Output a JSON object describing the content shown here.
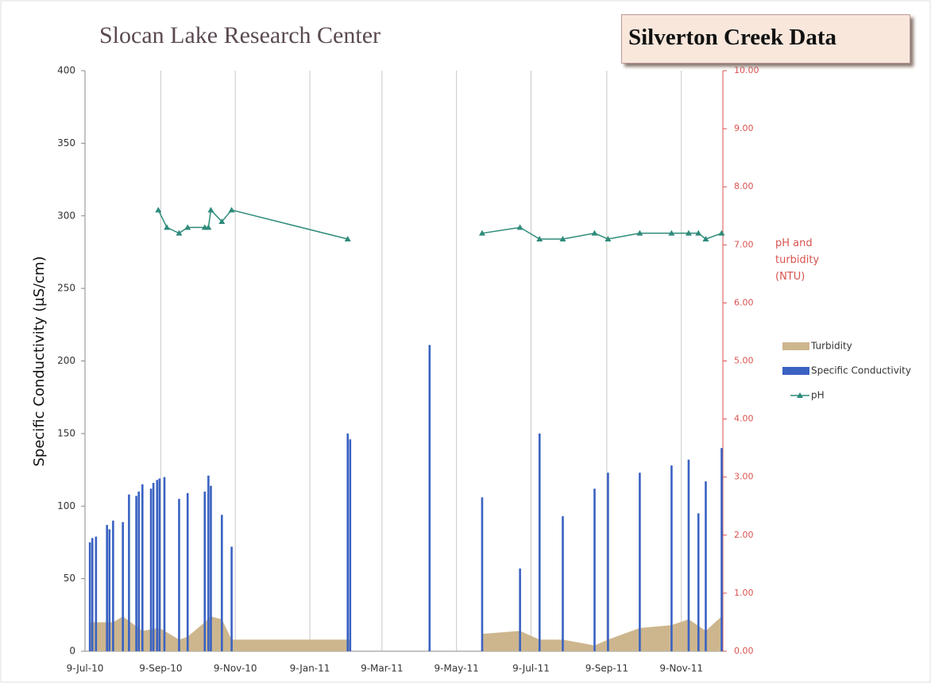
{
  "chart_data": {
    "type": "combo",
    "title": "Slocan Lake Research Center",
    "subtitle": "Silverton Creek Data",
    "y_label": "Specific Conductivity (µS/cm)",
    "y2_label": "pH and turbidity (NTU)",
    "xlim": [
      "2010-07-09",
      "2011-12-13"
    ],
    "xticks": [
      {
        "value": "2010-07-09",
        "label": "9-Jul-10"
      },
      {
        "value": "2010-09-09",
        "label": "9-Sep-10"
      },
      {
        "value": "2010-11-09",
        "label": "9-Nov-10"
      },
      {
        "value": "2011-01-09",
        "label": "9-Jan-11"
      },
      {
        "value": "2011-03-09",
        "label": "9-Mar-11"
      },
      {
        "value": "2011-05-09",
        "label": "9-May-11"
      },
      {
        "value": "2011-07-09",
        "label": "9-Jul-11"
      },
      {
        "value": "2011-09-09",
        "label": "9-Sep-11"
      },
      {
        "value": "2011-11-09",
        "label": "9-Nov-11"
      }
    ],
    "ylim": [
      0,
      400
    ],
    "yticks": [
      0,
      50,
      100,
      150,
      200,
      250,
      300,
      350,
      400
    ],
    "y2lim": [
      0,
      10
    ],
    "y2ticks": [
      {
        "value": 0,
        "label": "0.00"
      },
      {
        "value": 1,
        "label": "1.00"
      },
      {
        "value": 2,
        "label": "2.00"
      },
      {
        "value": 3,
        "label": "3.00"
      },
      {
        "value": 4,
        "label": "4.00"
      },
      {
        "value": 5,
        "label": "5.00"
      },
      {
        "value": 6,
        "label": "6.00"
      },
      {
        "value": 7,
        "label": "7.00"
      },
      {
        "value": 8,
        "label": "8.00"
      },
      {
        "value": 9,
        "label": "9.00"
      },
      {
        "value": 10,
        "label": "10.00"
      }
    ],
    "grid": "x",
    "legend": "right",
    "series": [
      {
        "name": "Turbidity",
        "type": "area",
        "axis": "y2",
        "color": "#cdb68e",
        "x": [
          "2010-07-13",
          "2010-08-01",
          "2010-08-09",
          "2010-08-25",
          "2010-09-08",
          "2010-09-12",
          "2010-09-24",
          "2010-10-01",
          "2010-10-15",
          "2010-10-20",
          "2010-10-29",
          "2010-11-06",
          "2011-02-11",
          "2011-04-17",
          "2011-05-30",
          "2011-06-30",
          "2011-07-16",
          "2011-08-04",
          "2011-08-30",
          "2011-09-10",
          "2011-10-06",
          "2011-11-01",
          "2011-11-15",
          "2011-11-29",
          "2011-12-12"
        ],
        "values": [
          0.5,
          0.5,
          0.6,
          0.35,
          0.4,
          0.35,
          0.2,
          0.25,
          0.5,
          0.6,
          0.55,
          0.2,
          0.2,
          null,
          0.3,
          0.35,
          0.2,
          0.2,
          0.1,
          0.2,
          0.4,
          0.45,
          0.55,
          0.35,
          0.6
        ]
      },
      {
        "name": "Specific Conductivity",
        "type": "bar",
        "color": "#3a62c2",
        "x": [
          "2010-07-13",
          "2010-07-15",
          "2010-07-18",
          "2010-07-27",
          "2010-07-29",
          "2010-08-01",
          "2010-08-09",
          "2010-08-14",
          "2010-08-20",
          "2010-08-22",
          "2010-08-25",
          "2010-09-01",
          "2010-09-03",
          "2010-09-06",
          "2010-09-08",
          "2010-09-12",
          "2010-09-24",
          "2010-10-01",
          "2010-10-15",
          "2010-10-18",
          "2010-10-20",
          "2010-10-29",
          "2010-11-06",
          "2011-02-09",
          "2011-02-11",
          "2011-04-17",
          "2011-05-30",
          "2011-06-30",
          "2011-07-16",
          "2011-08-04",
          "2011-08-30",
          "2011-09-10",
          "2011-10-06",
          "2011-11-01",
          "2011-11-15",
          "2011-11-23",
          "2011-11-29",
          "2011-12-12"
        ],
        "values": [
          75,
          78,
          79,
          87,
          84,
          90,
          89,
          108,
          107,
          110,
          115,
          112,
          116,
          118,
          119,
          120,
          105,
          109,
          110,
          121,
          114,
          94,
          72,
          150,
          146,
          211,
          106,
          57,
          150,
          93,
          112,
          123,
          123,
          128,
          132,
          95,
          117,
          140
        ]
      },
      {
        "name": "pH",
        "type": "line",
        "axis": "y2",
        "color": "#2e8b7a",
        "x": [
          "2010-09-07",
          "2010-09-14",
          "2010-09-24",
          "2010-10-01",
          "2010-10-15",
          "2010-10-18",
          "2010-10-20",
          "2010-10-29",
          "2010-11-06",
          "2011-02-09",
          "2011-04-17",
          "2011-05-30",
          "2011-06-30",
          "2011-07-16",
          "2011-08-04",
          "2011-08-30",
          "2011-09-10",
          "2011-10-06",
          "2011-11-01",
          "2011-11-15",
          "2011-11-23",
          "2011-11-29",
          "2011-12-12"
        ],
        "values": [
          7.6,
          7.3,
          7.2,
          7.3,
          7.3,
          7.3,
          7.6,
          7.4,
          7.6,
          7.1,
          null,
          7.2,
          7.3,
          7.1,
          7.1,
          7.2,
          7.1,
          7.2,
          7.2,
          7.2,
          7.2,
          7.1,
          7.2
        ]
      }
    ]
  }
}
